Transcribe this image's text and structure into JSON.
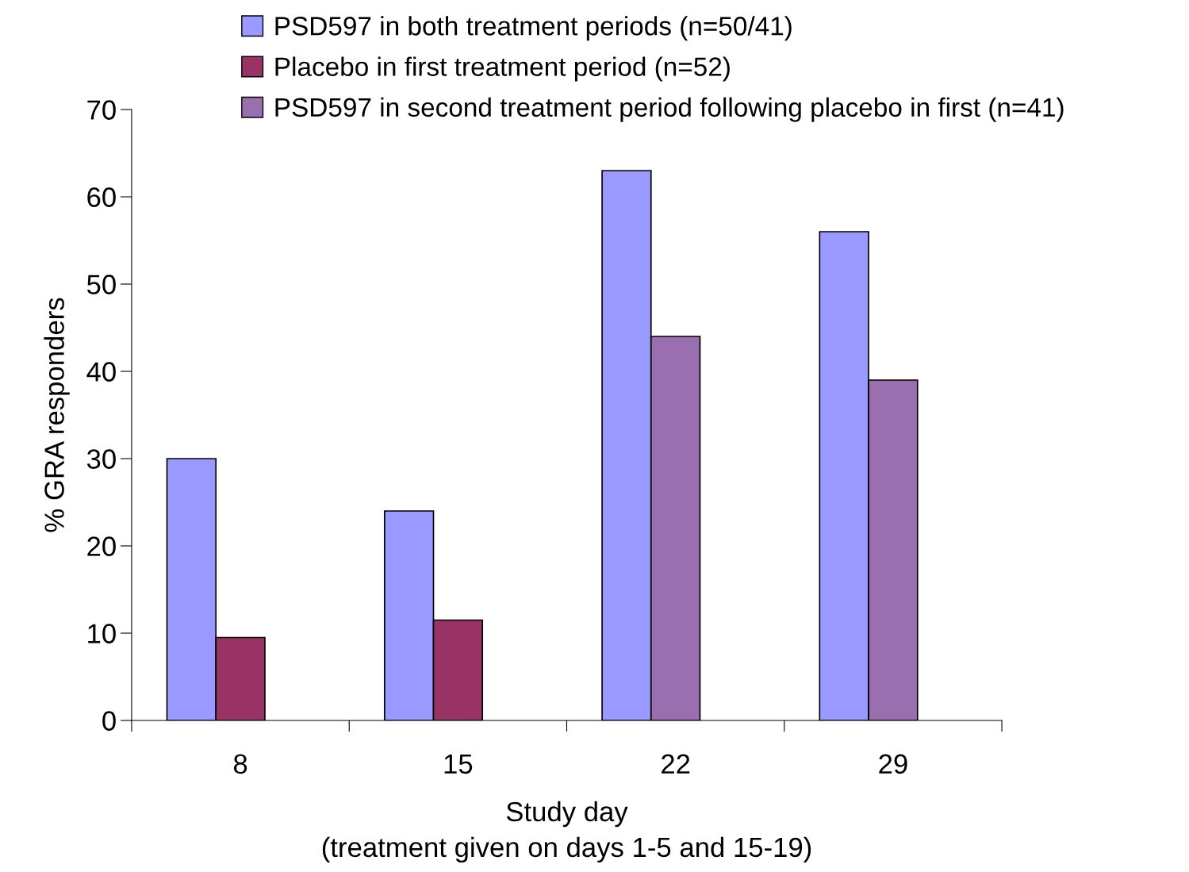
{
  "chart_data": {
    "type": "bar",
    "xlabel": "Study day\n(treatment given on days 1-5 and 15-19)",
    "ylabel": "% GRA responders",
    "categories": [
      "8",
      "15",
      "22",
      "29"
    ],
    "series": [
      {
        "name": "PSD597 in both treatment periods (n=50/41)",
        "color": "#9999ff",
        "values": [
          30,
          24,
          63,
          56
        ]
      },
      {
        "name": "Placebo in first treatment period (n=52)",
        "color": "#993366",
        "values": [
          9.5,
          11.5,
          null,
          null
        ]
      },
      {
        "name": "PSD597 in second treatment period following placebo in first (n=41)",
        "color": "#9a6fb0",
        "values": [
          null,
          null,
          44,
          39
        ]
      }
    ],
    "ylim": [
      0,
      70
    ],
    "yticks": [
      0,
      10,
      20,
      30,
      40,
      50,
      60,
      70
    ],
    "grid": false,
    "legend": "top"
  }
}
